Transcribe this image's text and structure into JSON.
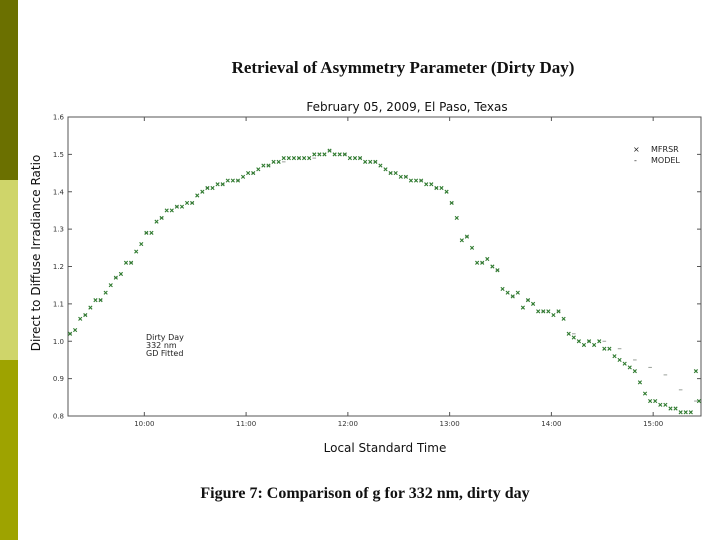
{
  "slide_title": "Retrieval of Asymmetry Parameter (Dirty Day)",
  "caption": "Figure 7: Comparison of g for 332 nm, dirty day",
  "colors": {
    "bar_top": "#6b7000",
    "bar_mid": "#cfd56a",
    "bar_bot": "#9ea300",
    "mfrsr": "#2f7a2f",
    "model": "#9aa09a"
  },
  "chart_data": {
    "type": "scatter",
    "title": "February 05, 2009, El Paso, Texas",
    "xlabel": "Local Standard Time",
    "ylabel": "Direct to Diffuse Irradiance Ratio",
    "ylim": [
      0.8,
      1.6
    ],
    "yticks": [
      "0.8",
      "0.9",
      "1.0",
      "1.1",
      "1.2",
      "1.3",
      "1.4",
      "1.5",
      "1.6"
    ],
    "xlim": [
      9.25,
      15.47
    ],
    "xticks": [
      {
        "label": "10:00",
        "value": 10
      },
      {
        "label": "11:00",
        "value": 11
      },
      {
        "label": "12:00",
        "value": 12
      },
      {
        "label": "13:00",
        "value": 13
      },
      {
        "label": "14:00",
        "value": 14
      },
      {
        "label": "15:00",
        "value": 15
      }
    ],
    "legend": {
      "position": "top-right",
      "entries": [
        "MFRSR",
        "MODEL"
      ]
    },
    "annotation": [
      "Dirty Day",
      "332 nm",
      "GD Fitted"
    ],
    "grid": false,
    "series": [
      {
        "name": "MFRSR",
        "x": [
          9.27,
          9.32,
          9.37,
          9.42,
          9.47,
          9.52,
          9.57,
          9.62,
          9.67,
          9.72,
          9.77,
          9.82,
          9.87,
          9.92,
          9.97,
          10.02,
          10.07,
          10.12,
          10.17,
          10.22,
          10.27,
          10.32,
          10.37,
          10.42,
          10.47,
          10.52,
          10.57,
          10.62,
          10.67,
          10.72,
          10.77,
          10.82,
          10.87,
          10.92,
          10.97,
          11.02,
          11.07,
          11.12,
          11.17,
          11.22,
          11.27,
          11.32,
          11.37,
          11.42,
          11.47,
          11.52,
          11.57,
          11.62,
          11.67,
          11.72,
          11.77,
          11.82,
          11.87,
          11.92,
          11.97,
          12.02,
          12.07,
          12.12,
          12.17,
          12.22,
          12.27,
          12.32,
          12.37,
          12.42,
          12.47,
          12.52,
          12.57,
          12.62,
          12.67,
          12.72,
          12.77,
          12.82,
          12.87,
          12.92,
          12.97,
          13.02,
          13.07,
          13.12,
          13.17,
          13.22,
          13.27,
          13.32,
          13.37,
          13.42,
          13.47,
          13.52,
          13.57,
          13.62,
          13.67,
          13.72,
          13.77,
          13.82,
          13.87,
          13.92,
          13.97,
          14.02,
          14.07,
          14.12,
          14.17,
          14.22,
          14.27,
          14.32,
          14.37,
          14.42,
          14.47,
          14.52,
          14.57,
          14.62,
          14.67,
          14.72,
          14.77,
          14.82,
          14.87,
          14.92,
          14.97,
          15.02,
          15.07,
          15.12,
          15.17,
          15.22,
          15.27,
          15.32,
          15.37,
          15.42,
          15.45
        ],
        "y": [
          1.02,
          1.03,
          1.06,
          1.07,
          1.09,
          1.11,
          1.11,
          1.13,
          1.15,
          1.17,
          1.18,
          1.21,
          1.21,
          1.24,
          1.26,
          1.29,
          1.29,
          1.32,
          1.33,
          1.35,
          1.35,
          1.36,
          1.36,
          1.37,
          1.37,
          1.39,
          1.4,
          1.41,
          1.41,
          1.42,
          1.42,
          1.43,
          1.43,
          1.43,
          1.44,
          1.45,
          1.45,
          1.46,
          1.47,
          1.47,
          1.48,
          1.48,
          1.49,
          1.49,
          1.49,
          1.49,
          1.49,
          1.49,
          1.5,
          1.5,
          1.5,
          1.51,
          1.5,
          1.5,
          1.5,
          1.49,
          1.49,
          1.49,
          1.48,
          1.48,
          1.48,
          1.47,
          1.46,
          1.45,
          1.45,
          1.44,
          1.44,
          1.43,
          1.43,
          1.43,
          1.42,
          1.42,
          1.41,
          1.41,
          1.4,
          1.37,
          1.33,
          1.27,
          1.28,
          1.25,
          1.21,
          1.21,
          1.22,
          1.2,
          1.19,
          1.14,
          1.13,
          1.12,
          1.13,
          1.09,
          1.11,
          1.1,
          1.08,
          1.08,
          1.08,
          1.07,
          1.08,
          1.06,
          1.02,
          1.01,
          1.0,
          0.99,
          1.0,
          0.99,
          1.0,
          0.98,
          0.98,
          0.96,
          0.95,
          0.94,
          0.93,
          0.92,
          0.89,
          0.86,
          0.84,
          0.84,
          0.83,
          0.83,
          0.82,
          0.82,
          0.81,
          0.81,
          0.81,
          0.92,
          0.84
        ]
      },
      {
        "name": "MODEL",
        "x": [
          9.27,
          9.42,
          9.57,
          9.72,
          9.87,
          10.02,
          10.17,
          10.32,
          10.47,
          10.62,
          10.77,
          10.92,
          11.07,
          11.22,
          11.37,
          11.52,
          11.67,
          11.82,
          11.97,
          12.12,
          12.27,
          12.42,
          12.57,
          12.72,
          12.87,
          13.02,
          13.17,
          13.32,
          13.47,
          13.62,
          13.77,
          13.92,
          14.07,
          14.22,
          14.37,
          14.52,
          14.67,
          14.82,
          14.97,
          15.12,
          15.27,
          15.42
        ],
        "y": [
          1.02,
          1.07,
          1.11,
          1.17,
          1.21,
          1.29,
          1.33,
          1.36,
          1.37,
          1.41,
          1.42,
          1.43,
          1.45,
          1.47,
          1.48,
          1.49,
          1.49,
          1.51,
          1.5,
          1.49,
          1.48,
          1.45,
          1.44,
          1.43,
          1.41,
          1.37,
          1.28,
          1.21,
          1.19,
          1.12,
          1.11,
          1.08,
          1.08,
          1.02,
          1.0,
          1.0,
          0.98,
          0.95,
          0.93,
          0.91,
          0.87,
          0.84
        ]
      }
    ]
  }
}
